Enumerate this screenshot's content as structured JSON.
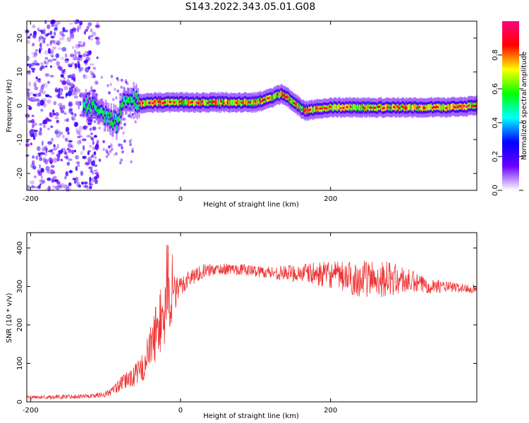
{
  "figure_title": "S143.2022.343.05.01.G08",
  "chart_data": [
    {
      "type": "heatmap",
      "title": "",
      "xlabel": "Height of straight line (km)",
      "ylabel": "Frequency (Hz)",
      "xlim": [
        -205,
        395
      ],
      "ylim": [
        -25,
        25
      ],
      "x_ticks": [
        -200,
        0,
        200
      ],
      "y_ticks": [
        -20,
        -10,
        0,
        10,
        20
      ],
      "colorbar": {
        "label": "Normalized spectral amplitude",
        "range": [
          0,
          1
        ],
        "ticks": [
          0.0,
          0.2,
          0.4,
          0.6,
          0.8
        ],
        "colormap": [
          "#ffffff",
          "#6a00ff",
          "#0000ff",
          "#00ffff",
          "#00ff00",
          "#ffff00",
          "#ff0000",
          "#ff0080"
        ]
      },
      "ridge": {
        "x": [
          -130,
          -110,
          -100,
          -85,
          -75,
          -65,
          -55,
          -45,
          -30,
          0,
          50,
          100,
          115,
          135,
          145,
          165,
          200,
          250,
          300,
          350,
          395
        ],
        "y": [
          0.5,
          -1,
          -3,
          -5,
          3,
          2,
          0.5,
          0.8,
          1,
          1,
          1,
          1,
          2,
          3.5,
          2,
          -1.5,
          -0.5,
          -0.5,
          -0.5,
          -0.5,
          0
        ]
      },
      "noise_region": {
        "x_range": [
          -205,
          -125
        ],
        "y_range": [
          -25,
          25
        ]
      },
      "grid": false
    },
    {
      "type": "line",
      "title": "",
      "xlabel": "Height of straight line (km)",
      "ylabel": "SNR (10 * v/v)",
      "xlim": [
        -205,
        395
      ],
      "ylim": [
        0,
        440
      ],
      "x_ticks": [
        -200,
        0,
        200
      ],
      "y_ticks": [
        0,
        100,
        200,
        300,
        400
      ],
      "color": "#ee3333",
      "grid": false,
      "series": [
        {
          "x": [
            -205,
            -180,
            -150,
            -120,
            -100,
            -90,
            -80,
            -70,
            -60,
            -50,
            -40,
            -30,
            -20,
            -15,
            -10,
            -5,
            0,
            10,
            20,
            30,
            50,
            80,
            100,
            130,
            160,
            200,
            230,
            260,
            280,
            300,
            320,
            350,
            380,
            395
          ],
          "y": [
            12,
            12,
            14,
            15,
            20,
            30,
            45,
            60,
            70,
            90,
            140,
            200,
            230,
            260,
            270,
            285,
            300,
            320,
            330,
            340,
            345,
            345,
            340,
            335,
            335,
            330,
            320,
            320,
            320,
            315,
            305,
            300,
            295,
            295
          ],
          "spread": [
            5,
            5,
            6,
            6,
            8,
            12,
            18,
            25,
            30,
            40,
            60,
            80,
            100,
            80,
            60,
            40,
            30,
            25,
            20,
            18,
            15,
            15,
            15,
            18,
            25,
            35,
            45,
            50,
            45,
            35,
            25,
            15,
            12,
            12
          ]
        }
      ]
    }
  ]
}
